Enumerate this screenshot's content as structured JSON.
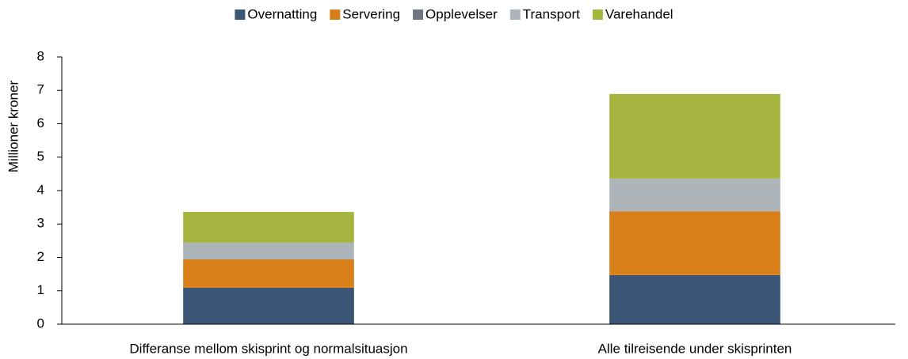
{
  "chart_data": {
    "type": "stacked_bar",
    "y_label": "Millioner kroner",
    "categories": [
      "Differanse mellom skisprint og normalsituasjon",
      "Alle tilreisende under skisprinten"
    ],
    "series": [
      {
        "name": "Overnatting",
        "color": "#3a5674",
        "values": [
          1.09,
          1.47
        ]
      },
      {
        "name": "Servering",
        "color": "#d97f1a",
        "values": [
          0.85,
          1.91
        ]
      },
      {
        "name": "Opplevelser",
        "color": "#6d7882",
        "values": [
          0,
          0
        ]
      },
      {
        "name": "Transport",
        "color": "#adb4ba",
        "values": [
          0.5,
          0.98
        ]
      },
      {
        "name": "Varehandel",
        "color": "#a6b53f",
        "values": [
          0.92,
          2.53
        ]
      }
    ],
    "ylim": [
      0,
      8
    ],
    "yticks": [
      0,
      1,
      2,
      3,
      4,
      5,
      6,
      7,
      8
    ],
    "grid": false,
    "legend": "top"
  }
}
